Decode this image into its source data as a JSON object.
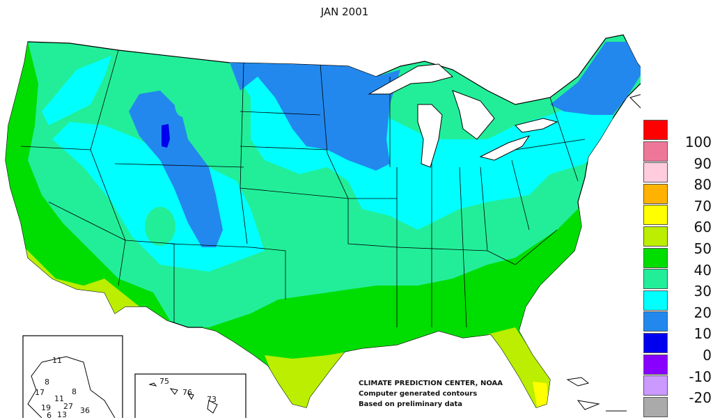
{
  "title": "JAN 2001",
  "legend": [
    {
      "label": "100",
      "color": "#ff0000"
    },
    {
      "label": "90",
      "color": "#ee7799"
    },
    {
      "label": "80",
      "color": "#ffccdd"
    },
    {
      "label": "70",
      "color": "#ffb300"
    },
    {
      "label": "60",
      "color": "#ffff00"
    },
    {
      "label": "50",
      "color": "#bbee00"
    },
    {
      "label": "40",
      "color": "#00dd00"
    },
    {
      "label": "30",
      "color": "#22ee99"
    },
    {
      "label": "20",
      "color": "#00ffff"
    },
    {
      "label": "10",
      "color": "#2288ee"
    },
    {
      "label": "0",
      "color": "#0000ee"
    },
    {
      "label": "-10",
      "color": "#8800ff"
    },
    {
      "label": "-20",
      "color": "#cc99ff"
    },
    {
      "label": "",
      "color": "#aaaaaa"
    }
  ],
  "credits": {
    "line1": "CLIMATE PREDICTION CENTER, NOAA",
    "line2": "Computer generated contours",
    "line3": "Based on preliminary data"
  },
  "alaska_labels": [
    "11",
    "8",
    "17",
    "11",
    "8",
    "19",
    "27",
    "36",
    "13",
    "6"
  ],
  "hawaii_labels": [
    "75",
    "76",
    "73"
  ],
  "region_colors": {
    "land": "#22ee99",
    "coast": "#00dd00",
    "cold": "#00ffff",
    "colder": "#2288ee",
    "coldest": "#0000ee",
    "warm": "#bbee00",
    "warmest": "#ffff00",
    "lakes": "#ffffff"
  }
}
